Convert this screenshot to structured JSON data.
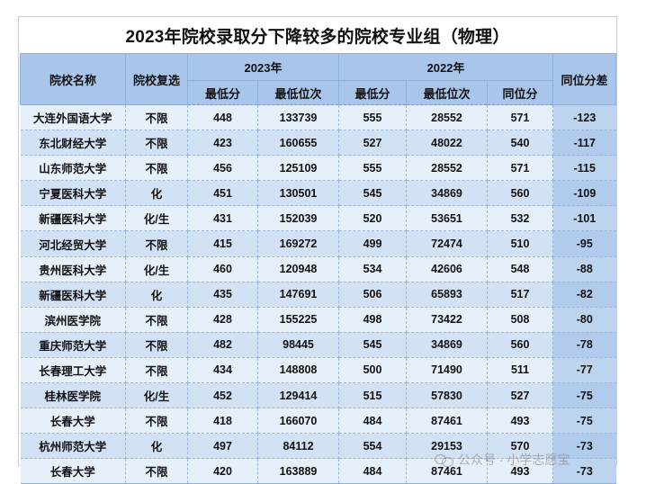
{
  "title": "2023年院校录取分下降较多的院校专业组（物理）",
  "headers": {
    "school": "院校名称",
    "subject": "院校复选",
    "y2023": "2023年",
    "y2022": "2022年",
    "min_score": "最低分",
    "min_rank": "最低位次",
    "equiv_score": "同位分",
    "diff": "同位分差"
  },
  "rows": [
    {
      "school": "大连外国语大学",
      "subject": "不限",
      "s23": "448",
      "r23": "133739",
      "s22": "555",
      "r22": "28552",
      "eq": "571",
      "diff": "-123"
    },
    {
      "school": "东北财经大学",
      "subject": "不限",
      "s23": "423",
      "r23": "160655",
      "s22": "527",
      "r22": "48022",
      "eq": "540",
      "diff": "-117"
    },
    {
      "school": "山东师范大学",
      "subject": "不限",
      "s23": "456",
      "r23": "125109",
      "s22": "555",
      "r22": "28552",
      "eq": "571",
      "diff": "-115"
    },
    {
      "school": "宁夏医科大学",
      "subject": "化",
      "s23": "451",
      "r23": "130501",
      "s22": "545",
      "r22": "34869",
      "eq": "560",
      "diff": "-109"
    },
    {
      "school": "新疆医科大学",
      "subject": "化/生",
      "s23": "431",
      "r23": "152039",
      "s22": "520",
      "r22": "53651",
      "eq": "532",
      "diff": "-101"
    },
    {
      "school": "河北经贸大学",
      "subject": "不限",
      "s23": "415",
      "r23": "169272",
      "s22": "499",
      "r22": "72474",
      "eq": "510",
      "diff": "-95"
    },
    {
      "school": "贵州医科大学",
      "subject": "化/生",
      "s23": "460",
      "r23": "120948",
      "s22": "534",
      "r22": "42606",
      "eq": "548",
      "diff": "-88"
    },
    {
      "school": "新疆医科大学",
      "subject": "化",
      "s23": "435",
      "r23": "147691",
      "s22": "506",
      "r22": "65893",
      "eq": "517",
      "diff": "-82"
    },
    {
      "school": "滨州医学院",
      "subject": "不限",
      "s23": "428",
      "r23": "155225",
      "s22": "498",
      "r22": "73422",
      "eq": "508",
      "diff": "-80"
    },
    {
      "school": "重庆师范大学",
      "subject": "不限",
      "s23": "482",
      "r23": "98445",
      "s22": "545",
      "r22": "34869",
      "eq": "560",
      "diff": "-78"
    },
    {
      "school": "长春理工大学",
      "subject": "不限",
      "s23": "434",
      "r23": "148808",
      "s22": "500",
      "r22": "71490",
      "eq": "511",
      "diff": "-77"
    },
    {
      "school": "桂林医学院",
      "subject": "化/生",
      "s23": "452",
      "r23": "129414",
      "s22": "515",
      "r22": "57830",
      "eq": "527",
      "diff": "-75"
    },
    {
      "school": "长春大学",
      "subject": "不限",
      "s23": "418",
      "r23": "166070",
      "s22": "484",
      "r22": "87461",
      "eq": "493",
      "diff": "-75"
    },
    {
      "school": "杭州师范大学",
      "subject": "化",
      "s23": "497",
      "r23": "84112",
      "s22": "554",
      "r22": "29153",
      "eq": "570",
      "diff": "-73"
    },
    {
      "school": "长春大学",
      "subject": "不限",
      "s23": "420",
      "r23": "163889",
      "s22": "484",
      "r22": "87461",
      "eq": "493",
      "diff": "-73"
    }
  ],
  "watermark": "公众号 · 小学志愿宝"
}
